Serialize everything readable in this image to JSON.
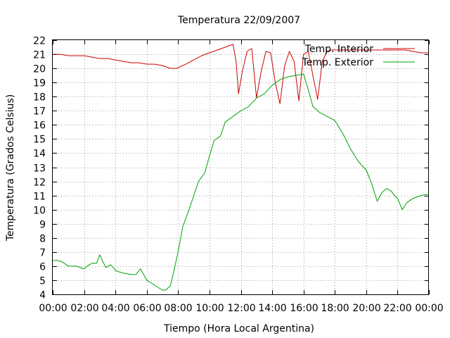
{
  "chart_data": {
    "type": "line",
    "title": "Temperatura 22/09/2007",
    "xlabel": "Tiempo (Hora Local Argentina)",
    "ylabel": "Temperatura (Grados Celsius)",
    "xlim": [
      0,
      24
    ],
    "ylim": [
      4,
      22
    ],
    "x_ticks": [
      "00:00",
      "02:00",
      "04:00",
      "06:00",
      "08:00",
      "10:00",
      "12:00",
      "14:00",
      "16:00",
      "18:00",
      "20:00",
      "22:00",
      "00:00"
    ],
    "y_ticks": [
      4,
      5,
      6,
      7,
      8,
      9,
      10,
      11,
      12,
      13,
      14,
      15,
      16,
      17,
      18,
      19,
      20,
      21,
      22
    ],
    "grid": true,
    "legend_position": "top-right",
    "series": [
      {
        "name": "Temp. Interior",
        "color": "#cc0000",
        "x": [
          0,
          0.5,
          1,
          1.5,
          2,
          2.5,
          3,
          3.5,
          4,
          4.5,
          5,
          5.5,
          6,
          6.5,
          7,
          7.5,
          7.9,
          8.5,
          9,
          9.5,
          10,
          10.5,
          11,
          11.5,
          11.7,
          11.85,
          12.1,
          12.4,
          12.7,
          13.0,
          13.3,
          13.6,
          13.9,
          14.2,
          14.5,
          14.8,
          15.1,
          15.4,
          15.7,
          16.0,
          16.3,
          16.6,
          16.9,
          17.2,
          17.5,
          17.8,
          18.2,
          18.6,
          19,
          19.5,
          20,
          20.5,
          21,
          21.5,
          22,
          22.5,
          23,
          23.5,
          24
        ],
        "y": [
          21.0,
          21.0,
          20.9,
          20.9,
          20.9,
          20.8,
          20.7,
          20.7,
          20.6,
          20.5,
          20.4,
          20.4,
          20.3,
          20.3,
          20.2,
          20.0,
          20.0,
          20.3,
          20.6,
          20.9,
          21.1,
          21.3,
          21.5,
          21.7,
          20.5,
          18.2,
          19.8,
          21.2,
          21.4,
          17.9,
          19.8,
          21.2,
          21.1,
          19.0,
          17.5,
          20.2,
          21.2,
          20.5,
          17.7,
          21.0,
          21.2,
          19.5,
          17.8,
          20.5,
          21.2,
          21.3,
          21.3,
          21.3,
          21.3,
          21.3,
          21.3,
          21.3,
          21.3,
          21.3,
          21.3,
          21.3,
          21.2,
          21.1,
          21.1
        ]
      },
      {
        "name": "Temp. Exterior",
        "color": "#00a000",
        "x": [
          0,
          0.3,
          0.6,
          1,
          1.5,
          2,
          2.2,
          2.5,
          2.8,
          3.0,
          3.2,
          3.4,
          3.7,
          4.0,
          4.2,
          4.5,
          5.0,
          5.3,
          5.6,
          6.0,
          6.3,
          6.7,
          7.0,
          7.2,
          7.5,
          7.7,
          8.0,
          8.3,
          8.7,
          9.0,
          9.3,
          9.7,
          10.0,
          10.3,
          10.7,
          11.0,
          11.5,
          12.0,
          12.5,
          13.0,
          13.5,
          14.0,
          14.5,
          15.0,
          15.5,
          16.0,
          16.3,
          16.6,
          17.0,
          17.5,
          18.0,
          18.5,
          19.0,
          19.5,
          20.0,
          20.3,
          20.7,
          21.0,
          21.3,
          21.6,
          21.8,
          22.0,
          22.3,
          22.6,
          23.0,
          23.5,
          24.0
        ],
        "y": [
          6.4,
          6.4,
          6.3,
          6.0,
          6.0,
          5.8,
          6.0,
          6.2,
          6.2,
          6.8,
          6.3,
          5.9,
          6.1,
          5.7,
          5.6,
          5.5,
          5.4,
          5.4,
          5.8,
          5.0,
          4.8,
          4.5,
          4.3,
          4.3,
          4.6,
          5.5,
          7.0,
          8.8,
          10.0,
          11.0,
          12.0,
          12.6,
          13.8,
          14.9,
          15.2,
          16.2,
          16.6,
          17.0,
          17.3,
          17.9,
          18.2,
          18.8,
          19.2,
          19.4,
          19.5,
          19.6,
          18.5,
          17.3,
          16.9,
          16.6,
          16.3,
          15.4,
          14.3,
          13.4,
          12.8,
          12.0,
          10.6,
          11.2,
          11.5,
          11.3,
          11.0,
          10.8,
          10.0,
          10.5,
          10.8,
          11.0,
          11.1
        ]
      }
    ]
  }
}
